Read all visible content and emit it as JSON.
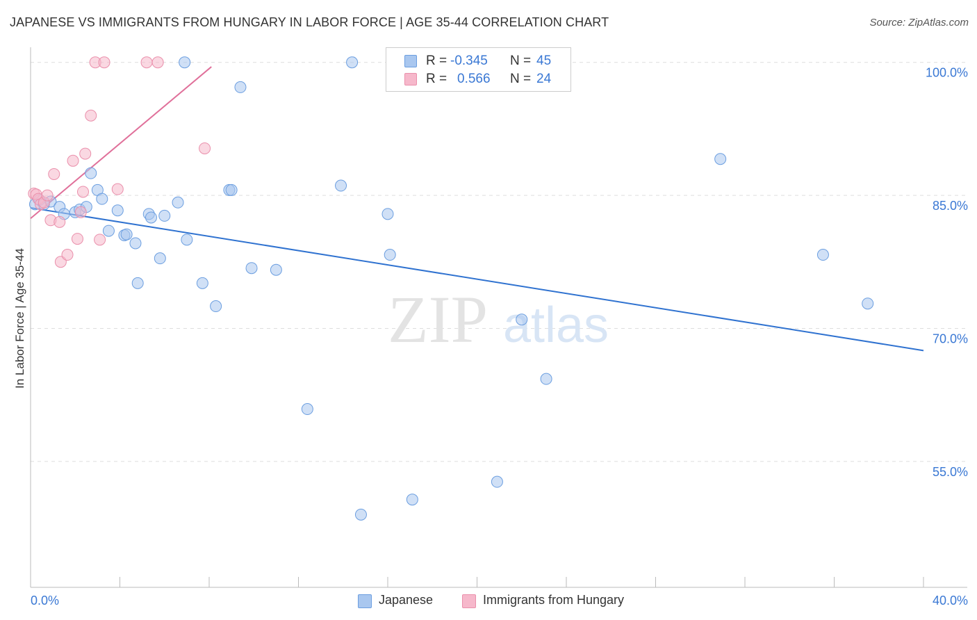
{
  "title": "JAPANESE VS IMMIGRANTS FROM HUNGARY IN LABOR FORCE | AGE 35-44 CORRELATION CHART",
  "source": "Source: ZipAtlas.com",
  "watermark": {
    "zip": "ZIP",
    "atlas": "atlas"
  },
  "colors": {
    "japanese_fill": "#a9c7ef",
    "japanese_stroke": "#6b9ee0",
    "japanese_line": "#2f72d0",
    "hungary_fill": "#f6b8cb",
    "hungary_stroke": "#ea8fab",
    "hungary_line": "#e0709a",
    "axis_text": "#3a78d4",
    "grid": "#dddddd"
  },
  "legend_top": {
    "rows": [
      {
        "r_label": "R =",
        "r_value": "-0.345",
        "n_label": "N =",
        "n_value": "45"
      },
      {
        "r_label": "R =",
        "r_value": "0.566",
        "n_label": "N =",
        "n_value": "24"
      }
    ]
  },
  "legend_bottom": {
    "items": [
      "Japanese",
      "Immigrants from Hungary"
    ]
  },
  "chart_data": {
    "type": "scatter",
    "title": "JAPANESE VS IMMIGRANTS FROM HUNGARY IN LABOR FORCE | AGE 35-44 CORRELATION CHART",
    "xlabel": "",
    "ylabel": "In Labor Force | Age 35-44",
    "xlim": [
      0,
      40
    ],
    "ylim": [
      40.8,
      101.7
    ],
    "x_tick_labels": [
      {
        "value": 0,
        "label": "0.0%"
      },
      {
        "value": 40,
        "label": "40.0%"
      }
    ],
    "y_tick_labels": [
      {
        "value": 100,
        "label": "100.0%"
      },
      {
        "value": 85,
        "label": "85.0%"
      },
      {
        "value": 70,
        "label": "70.0%"
      },
      {
        "value": 55,
        "label": "55.0%"
      }
    ],
    "x_minor_ticks": [
      0,
      4,
      8,
      12,
      16,
      20,
      24,
      28,
      32,
      36,
      40
    ],
    "series": [
      {
        "name": "Japanese",
        "r": -0.345,
        "n": 45,
        "trend": {
          "x": [
            0,
            40
          ],
          "y": [
            83.6,
            67.5
          ]
        },
        "points": [
          [
            0.2,
            84.0
          ],
          [
            0.4,
            84.5
          ],
          [
            0.6,
            84.0
          ],
          [
            0.9,
            84.3
          ],
          [
            1.3,
            83.7
          ],
          [
            1.5,
            82.9
          ],
          [
            2.0,
            83.1
          ],
          [
            2.2,
            83.4
          ],
          [
            2.5,
            83.7
          ],
          [
            2.7,
            87.5
          ],
          [
            3.0,
            85.6
          ],
          [
            3.2,
            84.6
          ],
          [
            3.5,
            81.0
          ],
          [
            3.9,
            83.3
          ],
          [
            4.2,
            80.5
          ],
          [
            4.3,
            80.6
          ],
          [
            4.7,
            79.6
          ],
          [
            4.8,
            75.1
          ],
          [
            5.3,
            82.9
          ],
          [
            5.4,
            82.5
          ],
          [
            5.8,
            77.9
          ],
          [
            6.0,
            82.7
          ],
          [
            6.6,
            84.2
          ],
          [
            6.9,
            100.0
          ],
          [
            7.0,
            80.0
          ],
          [
            7.7,
            75.1
          ],
          [
            8.3,
            72.5
          ],
          [
            8.9,
            85.6
          ],
          [
            9.0,
            85.6
          ],
          [
            9.4,
            97.2
          ],
          [
            9.9,
            76.8
          ],
          [
            11.0,
            76.6
          ],
          [
            12.4,
            60.9
          ],
          [
            13.9,
            86.1
          ],
          [
            14.4,
            100.0
          ],
          [
            14.8,
            49.0
          ],
          [
            16.0,
            82.9
          ],
          [
            16.1,
            78.3
          ],
          [
            17.1,
            50.7
          ],
          [
            20.9,
            52.7
          ],
          [
            22.0,
            71.0
          ],
          [
            23.1,
            64.3
          ],
          [
            30.9,
            89.1
          ],
          [
            35.5,
            78.3
          ],
          [
            37.5,
            72.8
          ]
        ]
      },
      {
        "name": "Immigrants from Hungary",
        "r": 0.566,
        "n": 24,
        "trend": {
          "x": [
            0,
            8.1
          ],
          "y": [
            82.4,
            99.5
          ]
        },
        "points": [
          [
            0.15,
            85.2
          ],
          [
            0.25,
            85.1
          ],
          [
            0.35,
            84.6
          ],
          [
            0.45,
            84.0
          ],
          [
            0.6,
            84.2
          ],
          [
            0.75,
            85.0
          ],
          [
            0.9,
            82.2
          ],
          [
            1.05,
            87.4
          ],
          [
            1.3,
            82.0
          ],
          [
            1.35,
            77.5
          ],
          [
            1.65,
            78.3
          ],
          [
            1.9,
            88.9
          ],
          [
            2.1,
            80.1
          ],
          [
            2.35,
            85.4
          ],
          [
            2.45,
            89.7
          ],
          [
            2.7,
            94.0
          ],
          [
            2.9,
            100.0
          ],
          [
            3.1,
            80.0
          ],
          [
            3.3,
            100.0
          ],
          [
            3.9,
            85.7
          ],
          [
            5.2,
            100.0
          ],
          [
            5.7,
            100.0
          ],
          [
            7.8,
            90.3
          ],
          [
            2.25,
            83.1
          ]
        ]
      }
    ]
  }
}
